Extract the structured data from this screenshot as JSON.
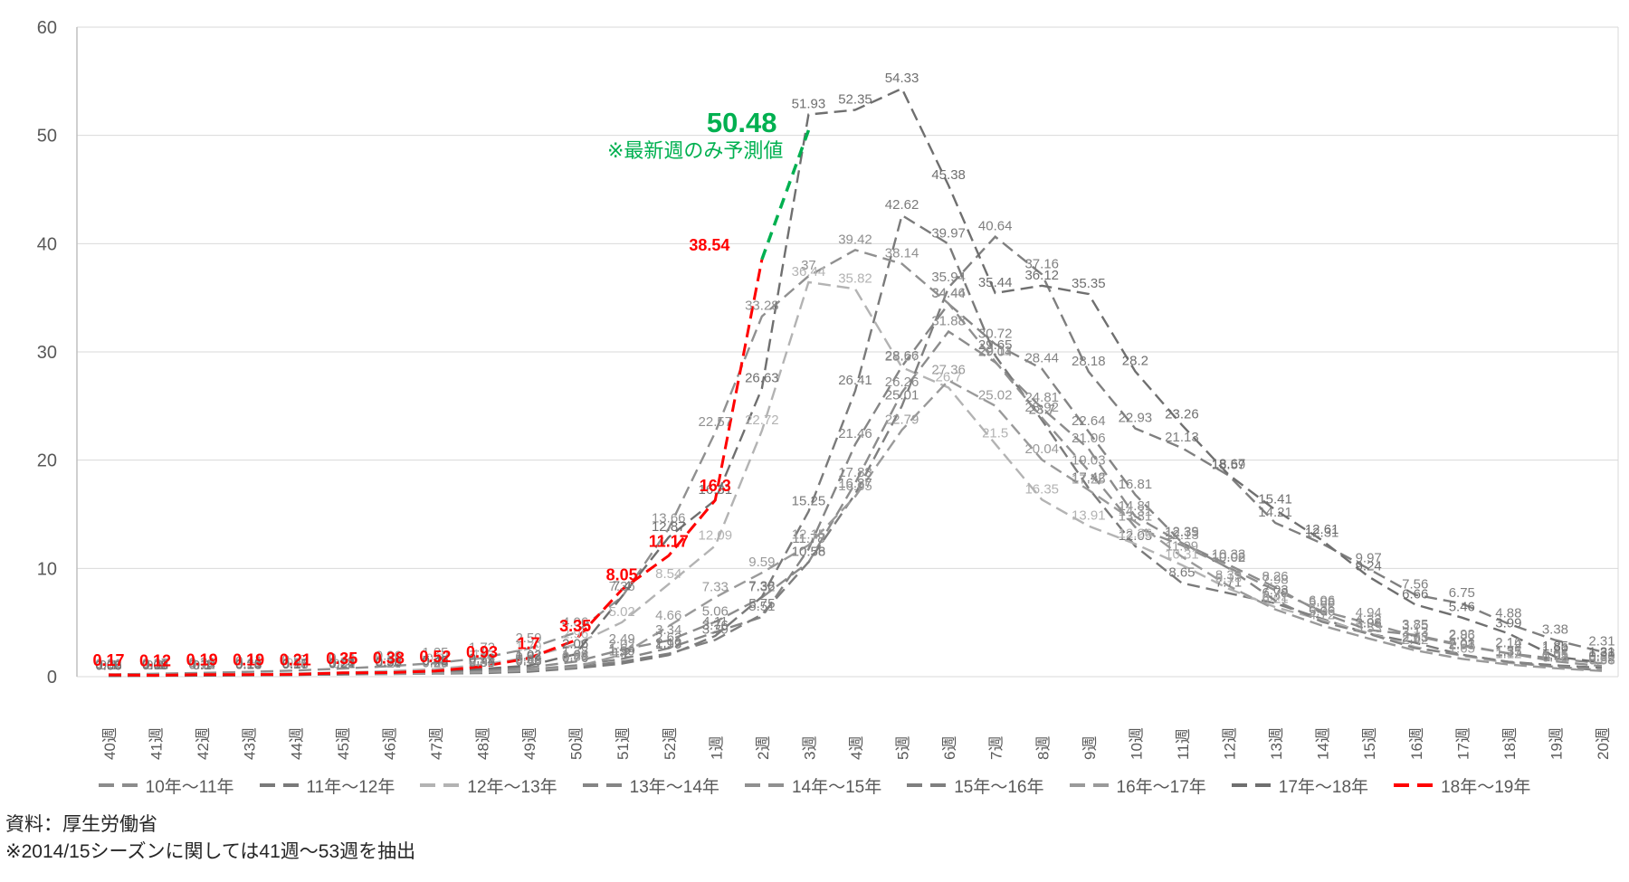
{
  "chart_data": {
    "type": "line",
    "title": "",
    "xlabel": "",
    "ylabel": "",
    "ylim": [
      0,
      60
    ],
    "y_ticks": [
      0,
      10,
      20,
      30,
      40,
      50,
      60
    ],
    "grid": "horizontal",
    "legend_position": "bottom",
    "categories": [
      "40週",
      "41週",
      "42週",
      "43週",
      "44週",
      "45週",
      "46週",
      "47週",
      "48週",
      "49週",
      "50週",
      "51週",
      "52週",
      "1週",
      "2週",
      "3週",
      "4週",
      "5週",
      "6週",
      "7週",
      "8週",
      "9週",
      "10週",
      "11週",
      "12週",
      "13週",
      "14週",
      "15週",
      "16週",
      "17週",
      "18週",
      "19週",
      "20週"
    ],
    "series": [
      {
        "name": "10年〜11年",
        "color": "#8c8c8c",
        "style": "dashed",
        "values": [
          0.13,
          0.14,
          0.17,
          0.21,
          0.25,
          0.31,
          0.38,
          0.46,
          0.59,
          0.84,
          1.38,
          2.49,
          3.34,
          5.06,
          7.32,
          10.56,
          17.88,
          26.26,
          31.88,
          29.04,
          24.81,
          21.06,
          14.81,
          12.35,
          10.33,
          8.26,
          5.88,
          4.32,
          3.85,
          2.93,
          2.14,
          1.66,
          1.23
        ]
      },
      {
        "name": "11年〜12年",
        "color": "#7a7a7a",
        "style": "dashed",
        "values": [
          0.1,
          0.12,
          0.14,
          0.16,
          0.18,
          0.21,
          0.24,
          0.28,
          0.33,
          0.46,
          0.76,
          1.2,
          1.99,
          3.76,
          7.38,
          15.25,
          26.41,
          42.62,
          39.97,
          29.65,
          23.7,
          17.42,
          12.05,
          8.65,
          7.71,
          6.78,
          5.35,
          3.98,
          3.13,
          2.03,
          1.37,
          1.05,
          0.82
        ]
      },
      {
        "name": "12年〜13年",
        "color": "#b3b3b3",
        "style": "dashed",
        "values": [
          0.12,
          0.15,
          0.19,
          0.24,
          0.3,
          0.38,
          0.52,
          0.7,
          1.1,
          1.79,
          2.96,
          5.02,
          8.54,
          12.09,
          22.72,
          36.44,
          35.82,
          28.57,
          26.7,
          21.5,
          16.35,
          13.91,
          12.26,
          10.31,
          8.13,
          6.42,
          5.26,
          4.03,
          2.73,
          1.93,
          1.27,
          0.92,
          0.61
        ]
      },
      {
        "name": "13年〜14年",
        "color": "#858585",
        "style": "dashed",
        "values": [
          0.08,
          0.1,
          0.12,
          0.14,
          0.17,
          0.21,
          0.26,
          0.33,
          0.43,
          0.64,
          1.04,
          1.64,
          2.62,
          4.11,
          5.51,
          11.78,
          21.46,
          28.66,
          34.44,
          30.72,
          28.44,
          22.64,
          16.81,
          12.39,
          10.02,
          7.03,
          5.06,
          3.96,
          2.63,
          2.01,
          1.35,
          0.91,
          0.58
        ]
      },
      {
        "name": "14年〜15年",
        "color": "#909090",
        "style": "dashed",
        "values": [
          0.21,
          0.27,
          0.34,
          0.44,
          0.57,
          0.74,
          0.96,
          1.25,
          1.72,
          2.59,
          4.06,
          7.36,
          13.66,
          22.57,
          33.28,
          37,
          39.42,
          38.14,
          34.46,
          29.11,
          23.92,
          19.03,
          13.81,
          12.13,
          10.08,
          7.98,
          6.06,
          4.94,
          3.75,
          2.86,
          2.16,
          1.41,
          0.98
        ]
      },
      {
        "name": "15年〜16年",
        "color": "#7f7f7f",
        "style": "dashed",
        "values": [
          0.09,
          0.11,
          0.13,
          0.15,
          0.18,
          0.22,
          0.27,
          0.34,
          0.44,
          0.62,
          0.86,
          1.39,
          2.12,
          3.39,
          5.75,
          10.58,
          16.87,
          25.01,
          35.94,
          40.64,
          37.16,
          28.18,
          22.93,
          21.13,
          18.59,
          14.21,
          12.31,
          9.97,
          7.56,
          6.75,
          4.88,
          3.38,
          2.31
        ]
      },
      {
        "name": "16年〜17年",
        "color": "#9a9a9a",
        "style": "dashed",
        "values": [
          0.07,
          0.09,
          0.11,
          0.13,
          0.16,
          0.2,
          0.25,
          0.32,
          0.42,
          0.59,
          0.89,
          2.02,
          4.66,
          7.33,
          9.59,
          12.15,
          16.65,
          22.79,
          27.36,
          25.02,
          20.04,
          17.25,
          14.31,
          11.09,
          8.39,
          6.21,
          4.72,
          3.53,
          2.42,
          1.65,
          1.12,
          0.78,
          0.53
        ]
      },
      {
        "name": "17年〜18年",
        "color": "#6f6f6f",
        "style": "dashed",
        "values": [
          0.06,
          0.08,
          0.1,
          0.13,
          0.17,
          0.24,
          0.36,
          0.49,
          0.72,
          1.02,
          2.06,
          7.4,
          12.87,
          16.31,
          26.63,
          51.93,
          52.35,
          54.33,
          45.38,
          35.44,
          36.12,
          35.35,
          28.2,
          23.26,
          18.67,
          15.41,
          12.61,
          9.24,
          6.66,
          5.46,
          3.99,
          1.85,
          1.31
        ]
      },
      {
        "name": "18年〜19年",
        "color": "#ff0000",
        "style": "dashed",
        "bold_labels": true,
        "values": [
          0.17,
          0.12,
          0.19,
          0.19,
          0.21,
          0.35,
          0.38,
          0.52,
          0.93,
          1.7,
          3.35,
          8.05,
          11.17,
          16.3,
          38.54,
          null,
          null,
          null,
          null,
          null,
          null,
          null,
          null,
          null,
          null,
          null,
          null,
          null,
          null,
          null,
          null,
          null,
          null
        ]
      },
      {
        "name": "予測値",
        "color": "#00b050",
        "style": "dashed",
        "prediction": true,
        "from_week": "2週",
        "from_value": 38.54,
        "week": "3週",
        "value": 50.48,
        "note": "※最新週のみ予測値"
      }
    ]
  },
  "footer": {
    "source": "資料：厚生労働省",
    "note": "※2014/15シーズンに関しては41週〜53週を抽出"
  }
}
